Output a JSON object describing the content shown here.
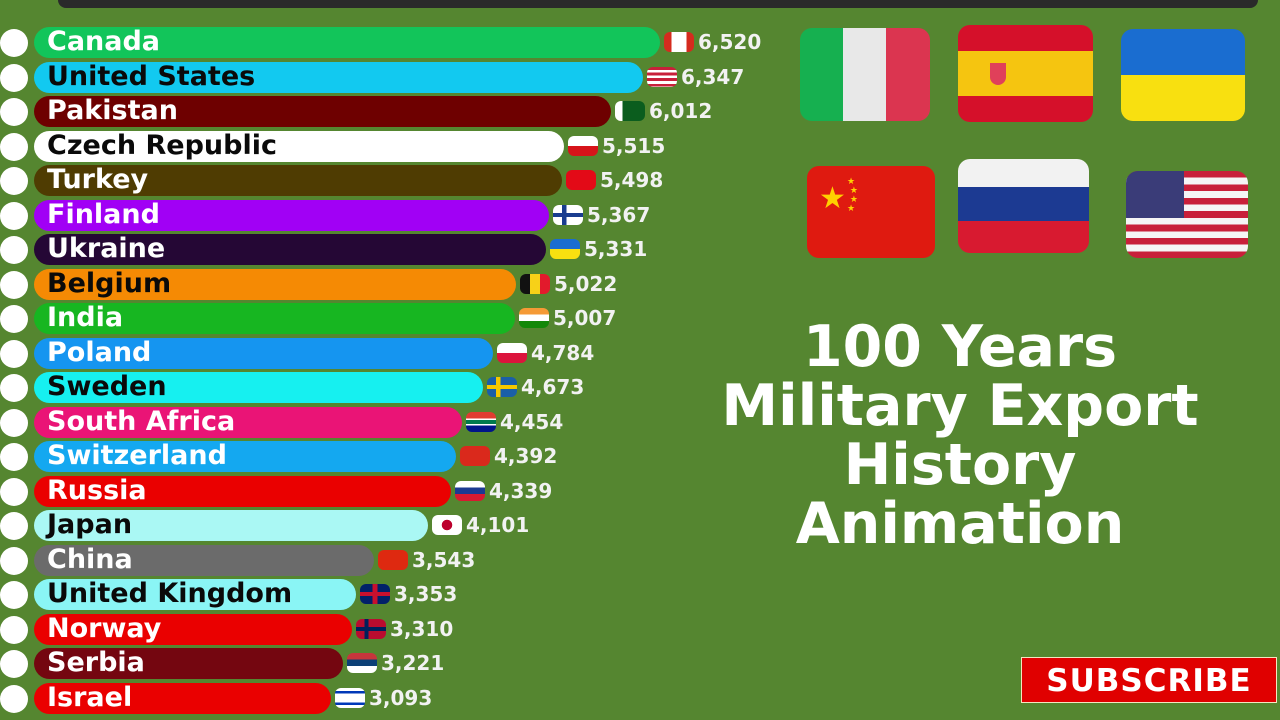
{
  "title": {
    "line1": "100 Years",
    "line2": "Military Export",
    "line3": "History",
    "line4": "Animation"
  },
  "subscribe_label": "SUBSCRIBE",
  "big_flags": [
    "Italy",
    "Spain",
    "Ukraine",
    "China",
    "Russia",
    "United States"
  ],
  "chart_data": {
    "type": "bar",
    "orientation": "horizontal",
    "title": "100 Years Military Export History Animation",
    "categories": [
      "Canada",
      "United States",
      "Pakistan",
      "Czech Republic",
      "Turkey",
      "Finland",
      "Ukraine",
      "Belgium",
      "India",
      "Poland",
      "Sweden",
      "South Africa",
      "Switzerland",
      "Russia",
      "Japan",
      "China",
      "United Kingdom",
      "Norway",
      "Serbia",
      "Israel"
    ],
    "values": [
      6520,
      6347,
      6012,
      5515,
      5498,
      5367,
      5331,
      5022,
      5007,
      4784,
      4673,
      4454,
      4392,
      4339,
      4101,
      3543,
      3353,
      3310,
      3221,
      3093
    ],
    "value_labels": [
      "6,520",
      "6,347",
      "6,012",
      "5,515",
      "5,498",
      "5,367",
      "5,331",
      "5,022",
      "5,007",
      "4,784",
      "4,673",
      "4,454",
      "4,392",
      "4,339",
      "4,101",
      "3,543",
      "3,353",
      "3,310",
      "3,221",
      "3,093"
    ],
    "bar_colors": [
      "#12c55a",
      "#12c9f0",
      "#6e0000",
      "#ffffff",
      "#4f3c02",
      "#a100f5",
      "#250735",
      "#f58a04",
      "#17b621",
      "#1595f0",
      "#16f0f0",
      "#ea1476",
      "#14a8f0",
      "#ea0000",
      "#aaf8f4",
      "#6b6b6b",
      "#8af5f5",
      "#ea0000",
      "#740610",
      "#ea0000"
    ],
    "label_colors": [
      "#ffffff",
      "#0a0a0a",
      "#ffffff",
      "#0a0a0a",
      "#ffffff",
      "#ffffff",
      "#ffffff",
      "#0a0a0a",
      "#ffffff",
      "#ffffff",
      "#0a0a0a",
      "#ffffff",
      "#ffffff",
      "#ffffff",
      "#0a0a0a",
      "#ffffff",
      "#0a0a0a",
      "#ffffff",
      "#ffffff",
      "#ffffff"
    ],
    "xlabel": "",
    "ylabel": "",
    "grid": false,
    "legend": "none"
  }
}
